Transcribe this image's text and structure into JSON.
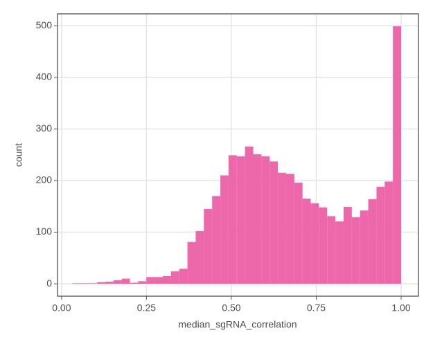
{
  "chart_data": {
    "type": "histogram",
    "x_label": "median_sgRNA_correlation",
    "y_label": "count",
    "color": "#ec60a6",
    "bins": [
      0.032,
      0.0562,
      0.0804,
      0.1046,
      0.1288,
      0.153,
      0.1772,
      0.2014,
      0.2256,
      0.2498,
      0.274,
      0.2982,
      0.3224,
      0.3466,
      0.3708,
      0.395,
      0.4192,
      0.4434,
      0.4676,
      0.4918,
      0.516,
      0.5402,
      0.5644,
      0.5886,
      0.6128,
      0.637,
      0.6612,
      0.6854,
      0.7096,
      0.7338,
      0.758,
      0.7822,
      0.8064,
      0.8306,
      0.8548,
      0.879,
      0.9032,
      0.9274,
      0.9516,
      0.9758,
      1.0
    ],
    "values": [
      1,
      1,
      1,
      3,
      4,
      7,
      10,
      2,
      5,
      13,
      13,
      15,
      24,
      29,
      81,
      102,
      145,
      170,
      210,
      249,
      247,
      266,
      251,
      247,
      237,
      215,
      213,
      196,
      165,
      156,
      148,
      131,
      121,
      149,
      129,
      142,
      164,
      188,
      198,
      499
    ],
    "xlim": [
      -0.012,
      1.051
    ],
    "ylim": [
      -24,
      523
    ],
    "xticks": [
      {
        "value": 0,
        "label": "0.00"
      },
      {
        "value": 0.25,
        "label": "0.25"
      },
      {
        "value": 0.5,
        "label": "0.50"
      },
      {
        "value": 0.75,
        "label": "0.75"
      },
      {
        "value": 1,
        "label": "1.00"
      }
    ],
    "yticks": [
      0,
      100,
      200,
      300,
      400,
      500
    ],
    "grid": true
  }
}
